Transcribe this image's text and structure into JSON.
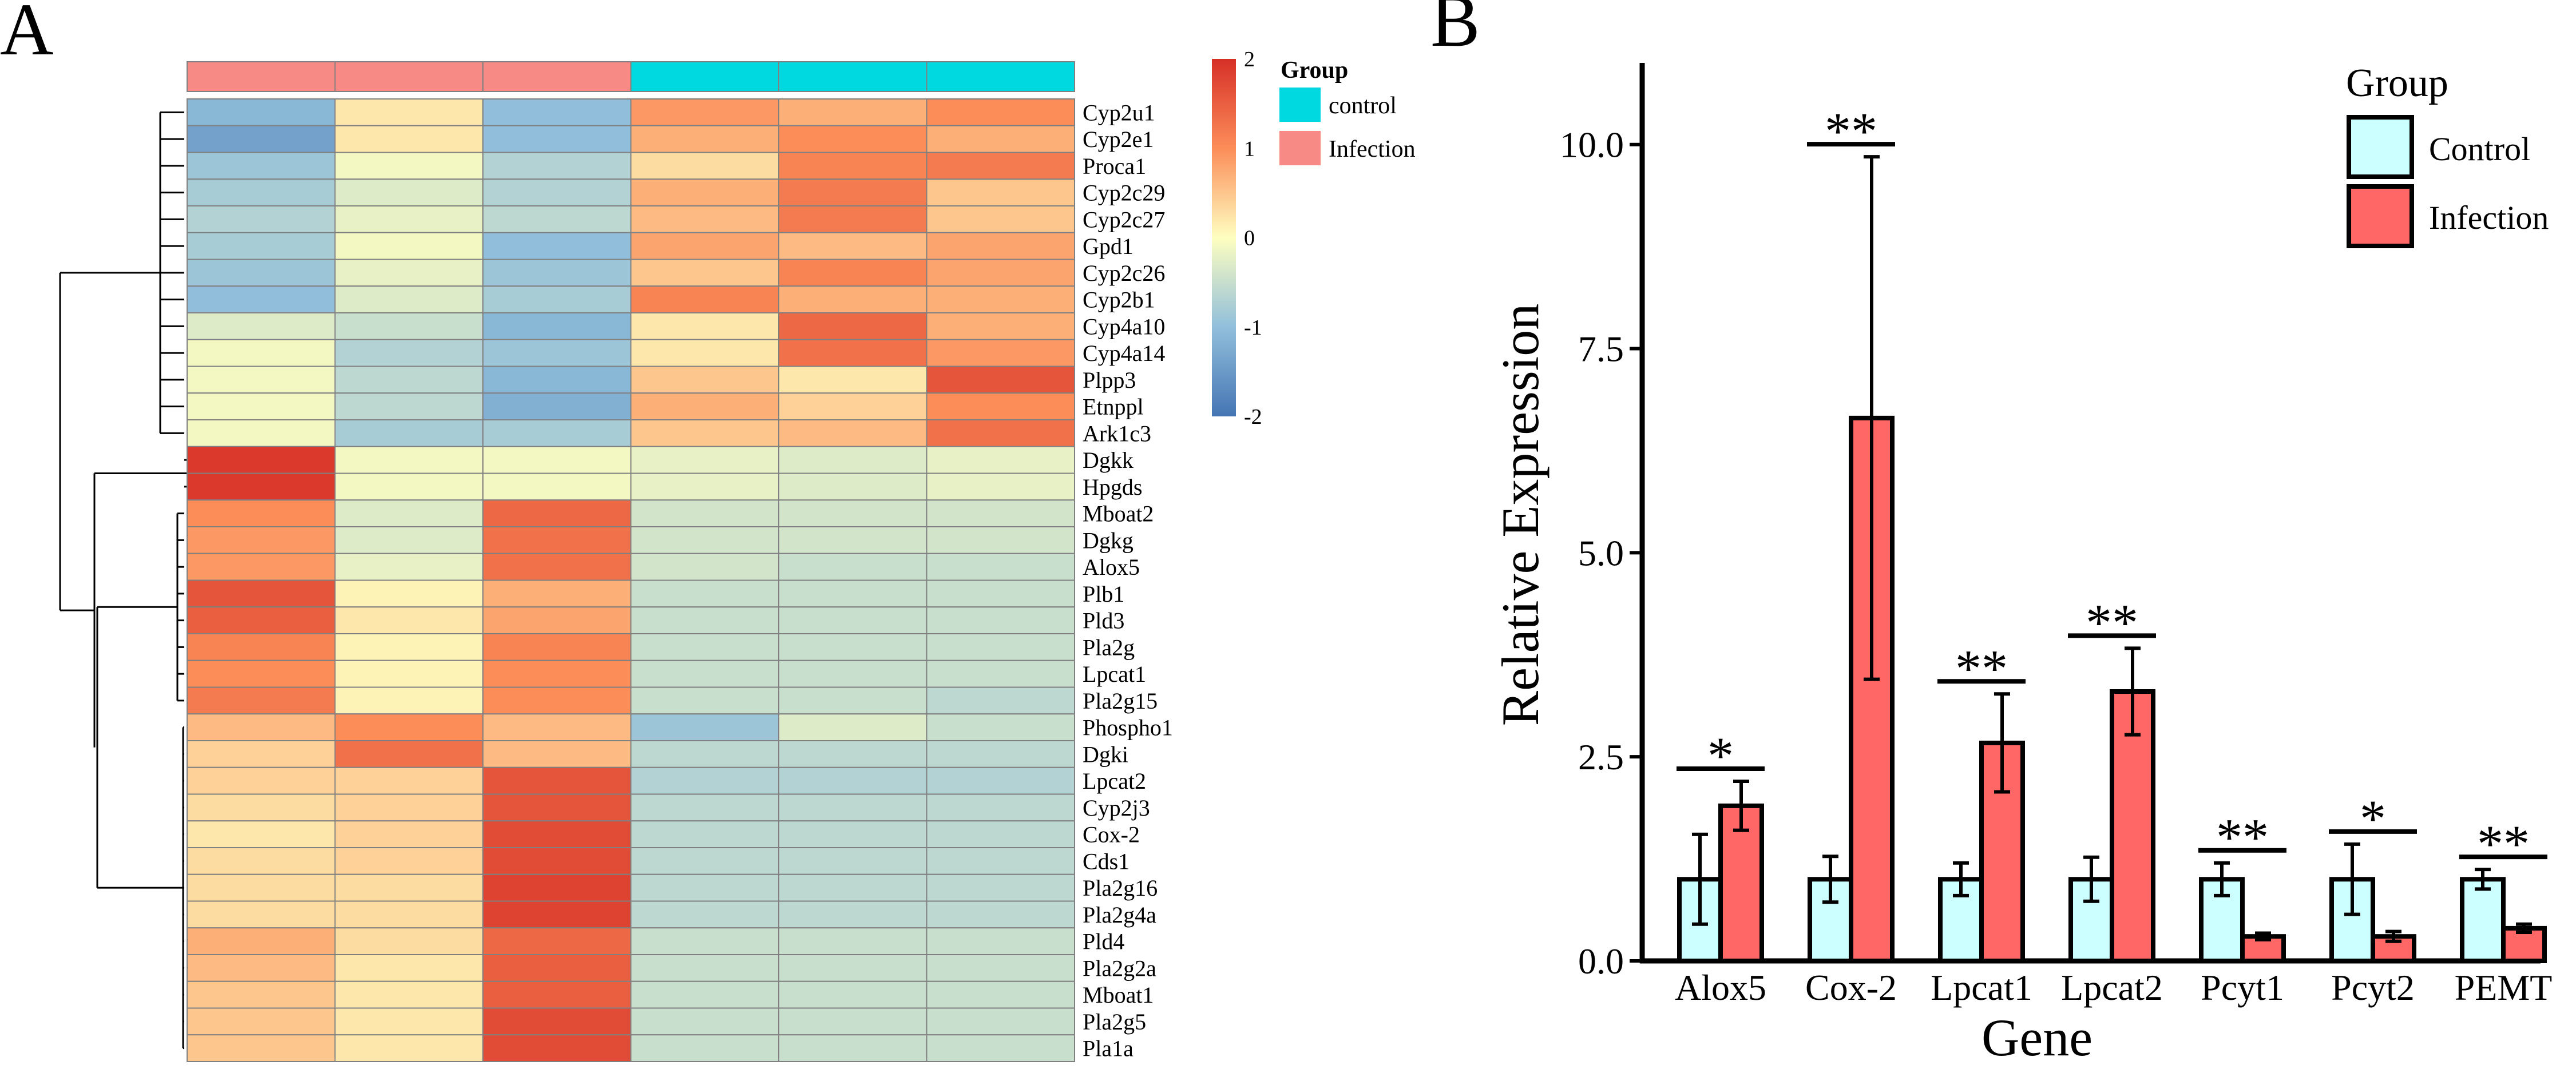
{
  "panel_labels": {
    "left": "A",
    "right": "B"
  },
  "colors": {
    "control": "#00D9E0",
    "infection": "#F88A85",
    "bar_control": "#CCFFFF",
    "bar_infection": "#FF6666",
    "scale_high": "#D63027",
    "scale_mid": "#FEFEC0",
    "scale_low": "#4575B4",
    "grid": "#808080"
  },
  "chart_data": [
    {
      "type": "heatmap",
      "title": "",
      "legend_title": "Group",
      "legend_items": [
        "control",
        "Infection"
      ],
      "color_scale": {
        "min": -2,
        "max": 2,
        "ticks": [
          "2",
          "1",
          "0",
          "-1",
          "-2"
        ],
        "tick_values": [
          2,
          1,
          0,
          -1,
          -2
        ]
      },
      "column_groups": [
        "Infection",
        "Infection",
        "Infection",
        "control",
        "control",
        "control"
      ],
      "rows": [
        "Cyp2u1",
        "Cyp2e1",
        "Proca1",
        "Cyp2c29",
        "Cyp2c27",
        "Gpd1",
        "Cyp2c26",
        "Cyp2b1",
        "Cyp4a10",
        "Cyp4a14",
        "Plpp3",
        "Etnppl",
        "Ark1c3",
        "Dgkk",
        "Hpgds",
        "Mboat2",
        "Dgkg",
        "Alox5",
        "Plb1",
        "Pld3",
        "Pla2g",
        "Lpcat1",
        "Pla2g15",
        "Phospho1",
        "Dgki",
        "Lpcat2",
        "Cyp2j3",
        "Cox-2",
        "Cds1",
        "Pla2g16",
        "Pla2g4a",
        "Pld4",
        "Pla2g2a",
        "Mboat1",
        "Pla2g5",
        "Pla1a"
      ],
      "values": [
        [
          -1.1,
          0.2,
          -1.0,
          0.9,
          0.7,
          1.0
        ],
        [
          -1.4,
          0.2,
          -1.0,
          0.7,
          1.0,
          0.7
        ],
        [
          -0.9,
          -0.1,
          -0.7,
          0.3,
          1.1,
          1.2
        ],
        [
          -0.8,
          -0.3,
          -0.7,
          0.7,
          1.2,
          0.5
        ],
        [
          -0.7,
          -0.2,
          -0.6,
          0.6,
          1.2,
          0.5
        ],
        [
          -0.8,
          -0.1,
          -1.0,
          0.8,
          0.6,
          0.8
        ],
        [
          -0.9,
          -0.2,
          -0.9,
          0.5,
          1.1,
          0.8
        ],
        [
          -1.0,
          -0.3,
          -0.8,
          1.1,
          0.7,
          0.7
        ],
        [
          -0.3,
          -0.5,
          -1.1,
          0.2,
          1.4,
          0.7
        ],
        [
          -0.1,
          -0.7,
          -0.9,
          0.2,
          1.3,
          0.9
        ],
        [
          -0.1,
          -0.6,
          -1.1,
          0.5,
          0.2,
          1.6
        ],
        [
          -0.1,
          -0.6,
          -1.2,
          0.7,
          0.4,
          1.0
        ],
        [
          -0.1,
          -0.8,
          -0.8,
          0.5,
          0.6,
          1.3
        ],
        [
          1.9,
          -0.1,
          -0.1,
          -0.2,
          -0.3,
          -0.2
        ],
        [
          1.9,
          -0.1,
          -0.1,
          -0.2,
          -0.3,
          -0.2
        ],
        [
          1.0,
          -0.3,
          1.4,
          -0.4,
          -0.4,
          -0.4
        ],
        [
          0.9,
          -0.3,
          1.3,
          -0.4,
          -0.4,
          -0.4
        ],
        [
          0.9,
          -0.2,
          1.3,
          -0.4,
          -0.5,
          -0.5
        ],
        [
          1.6,
          0.1,
          0.7,
          -0.5,
          -0.5,
          -0.5
        ],
        [
          1.5,
          0.2,
          0.8,
          -0.5,
          -0.5,
          -0.5
        ],
        [
          1.1,
          0.1,
          1.1,
          -0.5,
          -0.5,
          -0.5
        ],
        [
          1.0,
          0.1,
          1.0,
          -0.5,
          -0.5,
          -0.5
        ],
        [
          1.2,
          0.1,
          1.0,
          -0.5,
          -0.5,
          -0.6
        ],
        [
          0.6,
          1.0,
          0.6,
          -0.9,
          -0.3,
          -0.5
        ],
        [
          0.4,
          1.3,
          0.6,
          -0.6,
          -0.6,
          -0.6
        ],
        [
          0.4,
          0.4,
          1.6,
          -0.7,
          -0.7,
          -0.7
        ],
        [
          0.3,
          0.4,
          1.6,
          -0.6,
          -0.6,
          -0.6
        ],
        [
          0.2,
          0.4,
          1.7,
          -0.6,
          -0.6,
          -0.6
        ],
        [
          0.3,
          0.4,
          1.7,
          -0.6,
          -0.6,
          -0.6
        ],
        [
          0.3,
          0.3,
          1.8,
          -0.6,
          -0.6,
          -0.6
        ],
        [
          0.3,
          0.3,
          1.8,
          -0.6,
          -0.6,
          -0.6
        ],
        [
          0.7,
          0.3,
          1.4,
          -0.5,
          -0.5,
          -0.5
        ],
        [
          0.6,
          0.2,
          1.5,
          -0.5,
          -0.5,
          -0.5
        ],
        [
          0.5,
          0.2,
          1.5,
          -0.5,
          -0.5,
          -0.5
        ],
        [
          0.5,
          0.2,
          1.7,
          -0.5,
          -0.5,
          -0.5
        ],
        [
          0.5,
          0.2,
          1.7,
          -0.5,
          -0.5,
          -0.5
        ]
      ]
    },
    {
      "type": "bar",
      "title": "",
      "xlabel": "Gene",
      "ylabel": "Relative Expression",
      "ylim": [
        0,
        11
      ],
      "yticks": [
        0,
        2.5,
        5,
        7.5,
        10
      ],
      "ytick_labels": [
        "0.0",
        "2.5",
        "5.0",
        "7.5",
        "10.0"
      ],
      "legend_title": "Group",
      "categories": [
        "Alox5",
        "Cox-2",
        "Lpcat1",
        "Lpcat2",
        "Pcyt1",
        "Pcyt2",
        "PEMT"
      ],
      "series": [
        {
          "name": "Control",
          "values": [
            1.0,
            1.0,
            1.0,
            1.0,
            1.0,
            1.0,
            1.0
          ],
          "errors": [
            0.55,
            0.28,
            0.2,
            0.27,
            0.2,
            0.43,
            0.12
          ]
        },
        {
          "name": "Infection",
          "values": [
            1.9,
            6.65,
            2.67,
            3.3,
            0.3,
            0.3,
            0.4
          ],
          "errors": [
            0.3,
            3.2,
            0.6,
            0.53,
            0.04,
            0.06,
            0.05
          ]
        }
      ],
      "significance": [
        "*",
        "**",
        "**",
        "**",
        "**",
        "*",
        "**"
      ]
    }
  ]
}
